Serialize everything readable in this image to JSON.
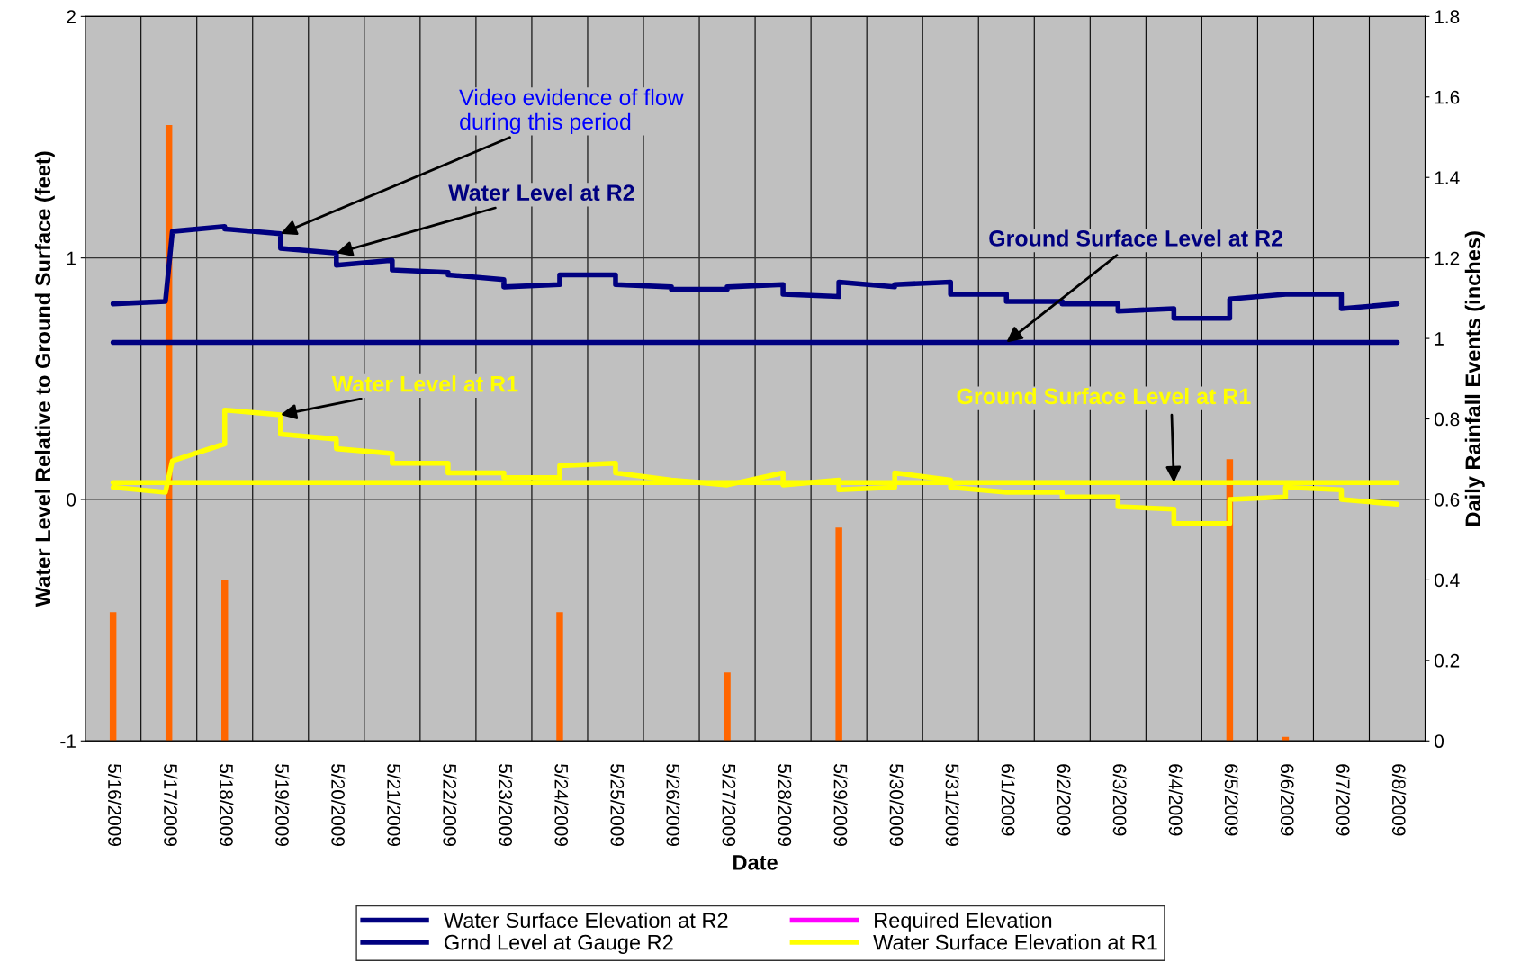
{
  "chart_data": {
    "type": "line",
    "xlabel": "Date",
    "ylabel": "Water Level Relative to Ground Surface (feet)",
    "y2label": "Daily Rainfall Events (inches)",
    "xlim": [
      "2009-05-15T12:00",
      "2009-06-08T12:00"
    ],
    "xticks": [
      {
        "value": "2009-05-15T12:00",
        "label": null
      },
      {
        "value": "2009-05-16",
        "label": "5/16/2009"
      },
      {
        "value": "2009-05-16T12:00",
        "label": null
      },
      {
        "value": "2009-05-17",
        "label": "5/17/2009"
      },
      {
        "value": "2009-05-17T12:00",
        "label": null
      },
      {
        "value": "2009-05-18",
        "label": "5/18/2009"
      },
      {
        "value": "2009-05-18T12:00",
        "label": null
      },
      {
        "value": "2009-05-19",
        "label": "5/19/2009"
      },
      {
        "value": "2009-05-19T12:00",
        "label": null
      },
      {
        "value": "2009-05-20",
        "label": "5/20/2009"
      },
      {
        "value": "2009-05-20T12:00",
        "label": null
      },
      {
        "value": "2009-05-21",
        "label": "5/21/2009"
      },
      {
        "value": "2009-05-21T12:00",
        "label": null
      },
      {
        "value": "2009-05-22",
        "label": "5/22/2009"
      },
      {
        "value": "2009-05-22T12:00",
        "label": null
      },
      {
        "value": "2009-05-23",
        "label": "5/23/2009"
      },
      {
        "value": "2009-05-23T12:00",
        "label": null
      },
      {
        "value": "2009-05-24",
        "label": "5/24/2009"
      },
      {
        "value": "2009-05-24T12:00",
        "label": null
      },
      {
        "value": "2009-05-25",
        "label": "5/25/2009"
      },
      {
        "value": "2009-05-25T12:00",
        "label": null
      },
      {
        "value": "2009-05-26",
        "label": "5/26/2009"
      },
      {
        "value": "2009-05-26T12:00",
        "label": null
      },
      {
        "value": "2009-05-27",
        "label": "5/27/2009"
      },
      {
        "value": "2009-05-27T12:00",
        "label": null
      },
      {
        "value": "2009-05-28",
        "label": "5/28/2009"
      },
      {
        "value": "2009-05-28T12:00",
        "label": null
      },
      {
        "value": "2009-05-29",
        "label": "5/29/2009"
      },
      {
        "value": "2009-05-29T12:00",
        "label": null
      },
      {
        "value": "2009-05-30",
        "label": "5/30/2009"
      },
      {
        "value": "2009-05-30T12:00",
        "label": null
      },
      {
        "value": "2009-05-31",
        "label": "5/31/2009"
      },
      {
        "value": "2009-05-31T12:00",
        "label": null
      },
      {
        "value": "2009-06-01",
        "label": "6/1/2009"
      },
      {
        "value": "2009-06-01T12:00",
        "label": null
      },
      {
        "value": "2009-06-02",
        "label": "6/2/2009"
      },
      {
        "value": "2009-06-02T12:00",
        "label": null
      },
      {
        "value": "2009-06-03",
        "label": "6/3/2009"
      },
      {
        "value": "2009-06-03T12:00",
        "label": null
      },
      {
        "value": "2009-06-04",
        "label": "6/4/2009"
      },
      {
        "value": "2009-06-04T12:00",
        "label": null
      },
      {
        "value": "2009-06-05",
        "label": "6/5/2009"
      },
      {
        "value": "2009-06-05T12:00",
        "label": null
      },
      {
        "value": "2009-06-06",
        "label": "6/6/2009"
      },
      {
        "value": "2009-06-06T12:00",
        "label": null
      },
      {
        "value": "2009-06-07",
        "label": "6/7/2009"
      },
      {
        "value": "2009-06-07T12:00",
        "label": null
      },
      {
        "value": "2009-06-08",
        "label": "6/8/2009"
      },
      {
        "value": "2009-06-08T12:00",
        "label": null
      }
    ],
    "ylim": [
      -1,
      2
    ],
    "yticks": [
      -1,
      0,
      1,
      2
    ],
    "y2lim": [
      0,
      1.8
    ],
    "y2ticks": [
      0,
      0.2,
      0.4,
      0.6,
      0.8,
      1,
      1.2,
      1.4,
      1.6,
      1.8
    ],
    "grid": true,
    "legend": "bottom",
    "line_style": "solid",
    "series": [
      {
        "type": "bar",
        "axis": "y2",
        "color": "#ff6600",
        "x": [
          "2009-05-16",
          "2009-05-17",
          "2009-05-18",
          "2009-05-19",
          "2009-05-20",
          "2009-05-21",
          "2009-05-22",
          "2009-05-23",
          "2009-05-24",
          "2009-05-25",
          "2009-05-26",
          "2009-05-27",
          "2009-05-28",
          "2009-05-29",
          "2009-05-30",
          "2009-05-31",
          "2009-06-01",
          "2009-06-02",
          "2009-06-03",
          "2009-06-04",
          "2009-06-05",
          "2009-06-06",
          "2009-06-07",
          "2009-06-08"
        ],
        "values": [
          0.32,
          1.53,
          0.4,
          0,
          0,
          0,
          0,
          0,
          0.32,
          0,
          0,
          0.17,
          0,
          0.53,
          0,
          0,
          0,
          0,
          0,
          0,
          0.7,
          0.01,
          0,
          0
        ]
      },
      {
        "name": "Water Surface Elevation at R2",
        "color": "#000080",
        "x": [
          "2009-05-16",
          "2009-05-16T22:30",
          "2009-05-17T01:30",
          "2009-05-18",
          "2009-05-18",
          "2009-05-19",
          "2009-05-19",
          "2009-05-20",
          "2009-05-20",
          "2009-05-21",
          "2009-05-21",
          "2009-05-22",
          "2009-05-22",
          "2009-05-23",
          "2009-05-23",
          "2009-05-24",
          "2009-05-24",
          "2009-05-25",
          "2009-05-25",
          "2009-05-26",
          "2009-05-26",
          "2009-05-27",
          "2009-05-27",
          "2009-05-28",
          "2009-05-28",
          "2009-05-29",
          "2009-05-29",
          "2009-05-30",
          "2009-05-30",
          "2009-05-31",
          "2009-05-31",
          "2009-06-01",
          "2009-06-01",
          "2009-06-02",
          "2009-06-02",
          "2009-06-03",
          "2009-06-03",
          "2009-06-04",
          "2009-06-04",
          "2009-06-05",
          "2009-06-05",
          "2009-06-06",
          "2009-06-07",
          "2009-06-07",
          "2009-06-08"
        ],
        "values": [
          0.81,
          0.82,
          1.11,
          1.13,
          1.12,
          1.1,
          1.04,
          1.02,
          0.97,
          0.99,
          0.95,
          0.94,
          0.93,
          0.91,
          0.88,
          0.89,
          0.93,
          0.93,
          0.89,
          0.88,
          0.87,
          0.87,
          0.88,
          0.89,
          0.85,
          0.84,
          0.9,
          0.88,
          0.89,
          0.9,
          0.85,
          0.85,
          0.82,
          0.82,
          0.81,
          0.81,
          0.78,
          0.79,
          0.75,
          0.75,
          0.83,
          0.85,
          0.85,
          0.79,
          0.81
        ]
      },
      {
        "name": "Grnd Level at Gauge R2",
        "color": "#000080",
        "x": [
          "2009-05-16",
          "2009-06-08"
        ],
        "values": [
          0.65,
          0.65
        ]
      },
      {
        "name": "Required Elevation",
        "color": "#ff00ff",
        "values": [
          null
        ]
      },
      {
        "name": "Water Surface Elevation at R1",
        "color": "#ffff00",
        "x": [
          "2009-05-16",
          "2009-05-16T22:30",
          "2009-05-17T01:30",
          "2009-05-18",
          "2009-05-18",
          "2009-05-19",
          "2009-05-19",
          "2009-05-20",
          "2009-05-20",
          "2009-05-21",
          "2009-05-21",
          "2009-05-22",
          "2009-05-22",
          "2009-05-23",
          "2009-05-23",
          "2009-05-24",
          "2009-05-24",
          "2009-05-25",
          "2009-05-25",
          "2009-05-26",
          "2009-05-27",
          "2009-05-28",
          "2009-05-28",
          "2009-05-29",
          "2009-05-29",
          "2009-05-30",
          "2009-05-30",
          "2009-05-31",
          "2009-05-31",
          "2009-06-01",
          "2009-06-02",
          "2009-06-02",
          "2009-06-03",
          "2009-06-03",
          "2009-06-04",
          "2009-06-04",
          "2009-06-05",
          "2009-06-05",
          "2009-06-06",
          "2009-06-06",
          "2009-06-07",
          "2009-06-07",
          "2009-06-08"
        ],
        "values": [
          0.05,
          0.03,
          0.16,
          0.23,
          0.37,
          0.35,
          0.27,
          0.25,
          0.21,
          0.19,
          0.15,
          0.15,
          0.11,
          0.11,
          0.09,
          0.09,
          0.14,
          0.15,
          0.11,
          0.08,
          0.06,
          0.11,
          0.06,
          0.08,
          0.04,
          0.05,
          0.11,
          0.08,
          0.05,
          0.03,
          0.03,
          0.01,
          0.01,
          -0.03,
          -0.04,
          -0.1,
          -0.1,
          0,
          0.01,
          0.05,
          0.04,
          0,
          -0.02
        ]
      },
      {
        "color": "#ffff00",
        "x": [
          "2009-05-16",
          "2009-06-08"
        ],
        "values": [
          0.07,
          0.07
        ]
      }
    ],
    "annotations": [
      {
        "text": "Video evidence of flow\nduring this period",
        "x": "2009-05-19",
        "y": 1.1
      },
      {
        "text": "Water Level at R2",
        "x": "2009-05-20",
        "y": 1.02
      },
      {
        "text": "Ground Surface Level at R2",
        "x": "2009-06-01",
        "y": 0.65
      },
      {
        "text": "Water Level at R1",
        "x": "2009-05-19",
        "y": 0.35
      },
      {
        "text": "Ground Surface Level at R1",
        "x": "2009-06-04",
        "y": 0.07
      }
    ]
  }
}
